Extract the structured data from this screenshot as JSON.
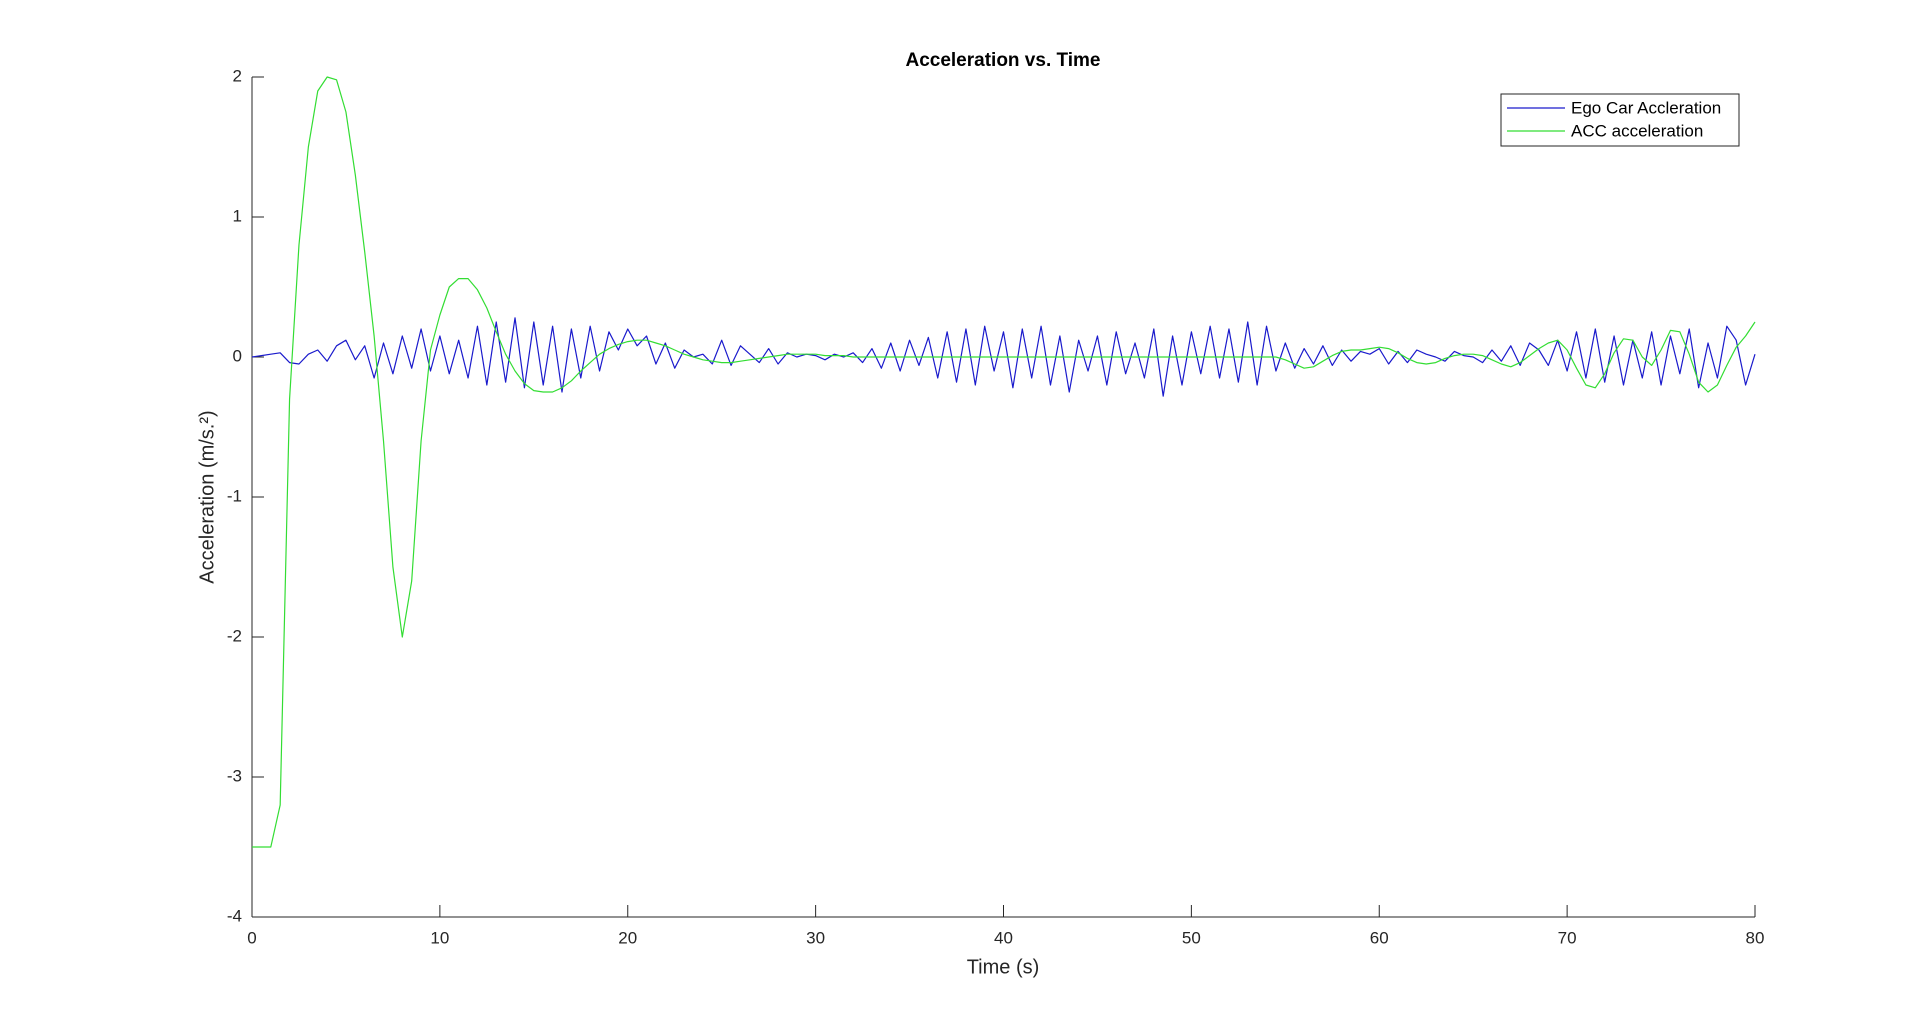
{
  "chart_data": {
    "type": "line",
    "title": "Acceleration vs. Time",
    "x_label": "Time (s)",
    "y_label": "Acceleration (m/s.²)",
    "x": [
      0,
      0.5,
      1,
      1.5,
      2,
      2.5,
      3,
      3.5,
      4,
      4.5,
      5,
      5.5,
      6,
      6.5,
      7,
      7.5,
      8,
      8.5,
      9,
      9.5,
      10,
      10.5,
      11,
      11.5,
      12,
      12.5,
      13,
      13.5,
      14,
      14.5,
      15,
      15.5,
      16,
      16.5,
      17,
      17.5,
      18,
      18.5,
      19,
      19.5,
      20,
      20.5,
      21,
      21.5,
      22,
      22.5,
      23,
      23.5,
      24,
      24.5,
      25,
      25.5,
      26,
      26.5,
      27,
      27.5,
      28,
      28.5,
      29,
      29.5,
      30,
      30.5,
      31,
      31.5,
      32,
      32.5,
      33,
      33.5,
      34,
      34.5,
      35,
      35.5,
      36,
      36.5,
      37,
      37.5,
      38,
      38.5,
      39,
      39.5,
      40,
      40.5,
      41,
      41.5,
      42,
      42.5,
      43,
      43.5,
      44,
      44.5,
      45,
      45.5,
      46,
      46.5,
      47,
      47.5,
      48,
      48.5,
      49,
      49.5,
      50,
      50.5,
      51,
      51.5,
      52,
      52.5,
      53,
      53.5,
      54,
      54.5,
      55,
      55.5,
      56,
      56.5,
      57,
      57.5,
      58,
      58.5,
      59,
      59.5,
      60,
      60.5,
      61,
      61.5,
      62,
      62.5,
      63,
      63.5,
      64,
      64.5,
      65,
      65.5,
      66,
      66.5,
      67,
      67.5,
      68,
      68.5,
      69,
      69.5,
      70,
      70.5,
      71,
      71.5,
      72,
      72.5,
      73,
      73.5,
      74,
      74.5,
      75,
      75.5,
      76,
      76.5,
      77,
      77.5,
      78,
      78.5,
      79,
      79.5,
      80
    ],
    "series": [
      {
        "name": "Ego Car Accleration",
        "color": "#1a1acc",
        "values": [
          0,
          0.01,
          0.02,
          0.03,
          -0.04,
          -0.05,
          0.02,
          0.05,
          -0.03,
          0.08,
          0.12,
          -0.02,
          0.08,
          -0.15,
          0.1,
          -0.12,
          0.15,
          -0.08,
          0.2,
          -0.1,
          0.15,
          -0.12,
          0.12,
          -0.15,
          0.22,
          -0.2,
          0.25,
          -0.18,
          0.28,
          -0.22,
          0.25,
          -0.2,
          0.22,
          -0.25,
          0.2,
          -0.15,
          0.22,
          -0.1,
          0.18,
          0.05,
          0.2,
          0.08,
          0.15,
          -0.05,
          0.1,
          -0.08,
          0.05,
          0,
          0.02,
          -0.05,
          0.12,
          -0.06,
          0.08,
          0.02,
          -0.04,
          0.06,
          -0.05,
          0.03,
          0,
          0.02,
          0.01,
          -0.02,
          0.02,
          0,
          0.03,
          -0.04,
          0.06,
          -0.08,
          0.1,
          -0.1,
          0.12,
          -0.06,
          0.14,
          -0.15,
          0.18,
          -0.18,
          0.2,
          -0.2,
          0.22,
          -0.1,
          0.18,
          -0.22,
          0.2,
          -0.15,
          0.22,
          -0.2,
          0.15,
          -0.25,
          0.12,
          -0.1,
          0.15,
          -0.2,
          0.18,
          -0.12,
          0.1,
          -0.15,
          0.2,
          -0.28,
          0.15,
          -0.2,
          0.18,
          -0.12,
          0.22,
          -0.15,
          0.2,
          -0.18,
          0.25,
          -0.2,
          0.22,
          -0.1,
          0.1,
          -0.08,
          0.06,
          -0.05,
          0.08,
          -0.06,
          0.05,
          -0.03,
          0.04,
          0.02,
          0.06,
          -0.05,
          0.04,
          -0.04,
          0.05,
          0.02,
          0,
          -0.03,
          0.04,
          0.01,
          0,
          -0.04,
          0.05,
          -0.03,
          0.08,
          -0.06,
          0.1,
          0.05,
          -0.06,
          0.12,
          -0.1,
          0.18,
          -0.15,
          0.2,
          -0.18,
          0.15,
          -0.2,
          0.12,
          -0.15,
          0.18,
          -0.2,
          0.15,
          -0.12,
          0.2,
          -0.22,
          0.1,
          -0.15,
          0.22,
          0.12,
          -0.2,
          0.02
        ]
      },
      {
        "name": "ACC acceleration",
        "color": "#33dd33",
        "values": [
          -3.5,
          -3.5,
          -3.5,
          -3.2,
          -0.3,
          0.8,
          1.5,
          1.9,
          2,
          1.98,
          1.75,
          1.3,
          0.75,
          0.15,
          -0.6,
          -1.5,
          -2,
          -1.6,
          -0.6,
          0.05,
          0.3,
          0.5,
          0.56,
          0.56,
          0.48,
          0.35,
          0.18,
          0.02,
          -0.1,
          -0.19,
          -0.24,
          -0.25,
          -0.25,
          -0.22,
          -0.17,
          -0.1,
          -0.04,
          0.02,
          0.06,
          0.09,
          0.11,
          0.12,
          0.12,
          0.1,
          0.08,
          0.05,
          0.02,
          0,
          -0.02,
          -0.03,
          -0.04,
          -0.04,
          -0.03,
          -0.02,
          -0.01,
          0,
          0.01,
          0.02,
          0.02,
          0.02,
          0.02,
          0.01,
          0.01,
          0.01,
          0,
          0,
          0,
          0,
          0,
          0,
          0,
          0,
          0,
          0,
          0,
          0,
          0,
          0,
          0,
          0,
          0,
          0,
          0,
          0,
          0,
          0,
          0,
          0,
          0,
          0,
          0,
          0,
          0,
          0,
          0,
          0,
          0,
          0,
          0,
          0,
          0,
          0,
          0,
          0,
          0,
          0,
          0,
          0,
          0,
          0,
          -0.02,
          -0.05,
          -0.08,
          -0.07,
          -0.03,
          0.01,
          0.04,
          0.05,
          0.05,
          0.06,
          0.07,
          0.06,
          0.03,
          -0.01,
          -0.04,
          -0.05,
          -0.04,
          -0.01,
          0.01,
          0.02,
          0.02,
          0.01,
          -0.02,
          -0.05,
          -0.07,
          -0.04,
          0.01,
          0.06,
          0.1,
          0.12,
          0.05,
          -0.08,
          -0.2,
          -0.22,
          -0.12,
          0.03,
          0.13,
          0.12,
          0,
          -0.06,
          0.05,
          0.19,
          0.18,
          0.02,
          -0.18,
          -0.25,
          -0.2,
          -0.06,
          0.07,
          0.15,
          0.25
        ]
      }
    ],
    "xlim": [
      0,
      80
    ],
    "xticks": [
      0,
      10,
      20,
      30,
      40,
      50,
      60,
      70,
      80
    ],
    "ylim": [
      -4,
      2
    ],
    "yticks": [
      -4,
      -3,
      -2,
      -1,
      0,
      1,
      2
    ],
    "grid": false,
    "legend": "top-right"
  }
}
